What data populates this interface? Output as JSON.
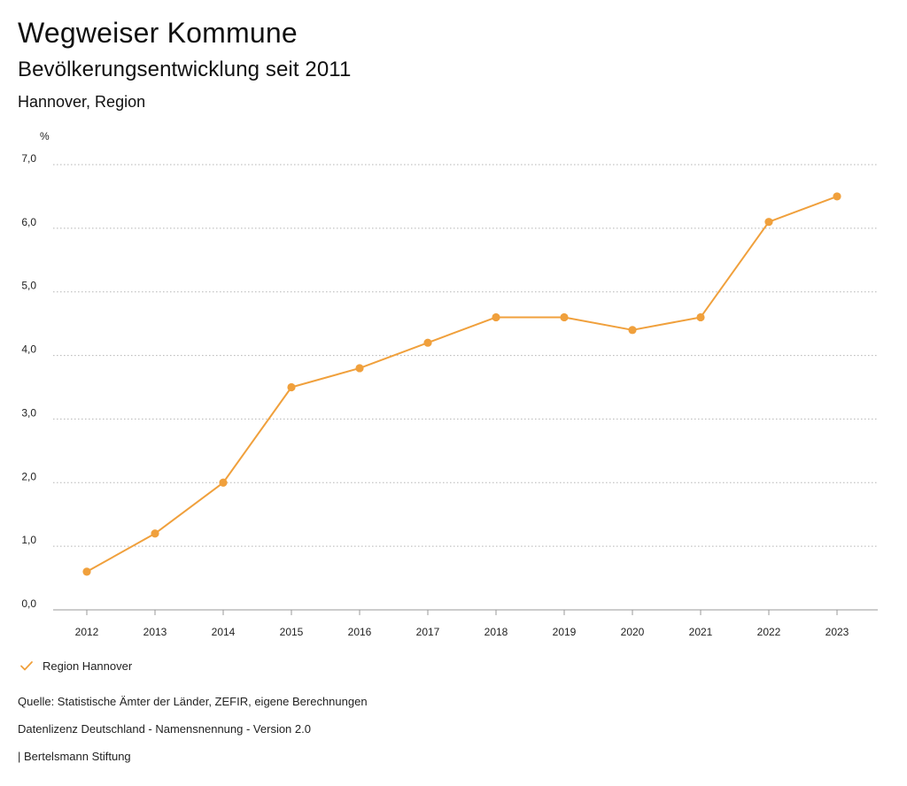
{
  "header": {
    "title": "Wegweiser Kommune",
    "subtitle": "Bevölkerungsentwicklung seit 2011",
    "region": "Hannover, Region"
  },
  "chart_data": {
    "type": "line",
    "title": "Bevölkerungsentwicklung seit 2011",
    "xlabel": "",
    "ylabel": "%",
    "ylim": [
      0,
      7
    ],
    "y_ticks": [
      "0,0",
      "1,0",
      "2,0",
      "3,0",
      "4,0",
      "5,0",
      "6,0",
      "7,0"
    ],
    "grid": true,
    "categories": [
      "2012",
      "2013",
      "2014",
      "2015",
      "2016",
      "2017",
      "2018",
      "2019",
      "2020",
      "2021",
      "2022",
      "2023"
    ],
    "series": [
      {
        "name": "Region Hannover",
        "color": "#f0a03c",
        "values": [
          0.6,
          1.2,
          2.0,
          3.5,
          3.8,
          4.2,
          4.6,
          4.6,
          4.4,
          4.6,
          6.1,
          6.5
        ]
      }
    ],
    "legend_position": "bottom-left"
  },
  "legend": {
    "label": "Region Hannover",
    "icon": "check-icon"
  },
  "footer": {
    "source": "Quelle: Statistische Ämter der Länder, ZEFIR, eigene Berechnungen",
    "license": "Datenlizenz Deutschland - Namensnennung - Version 2.0",
    "publisher": "| Bertelsmann Stiftung"
  }
}
